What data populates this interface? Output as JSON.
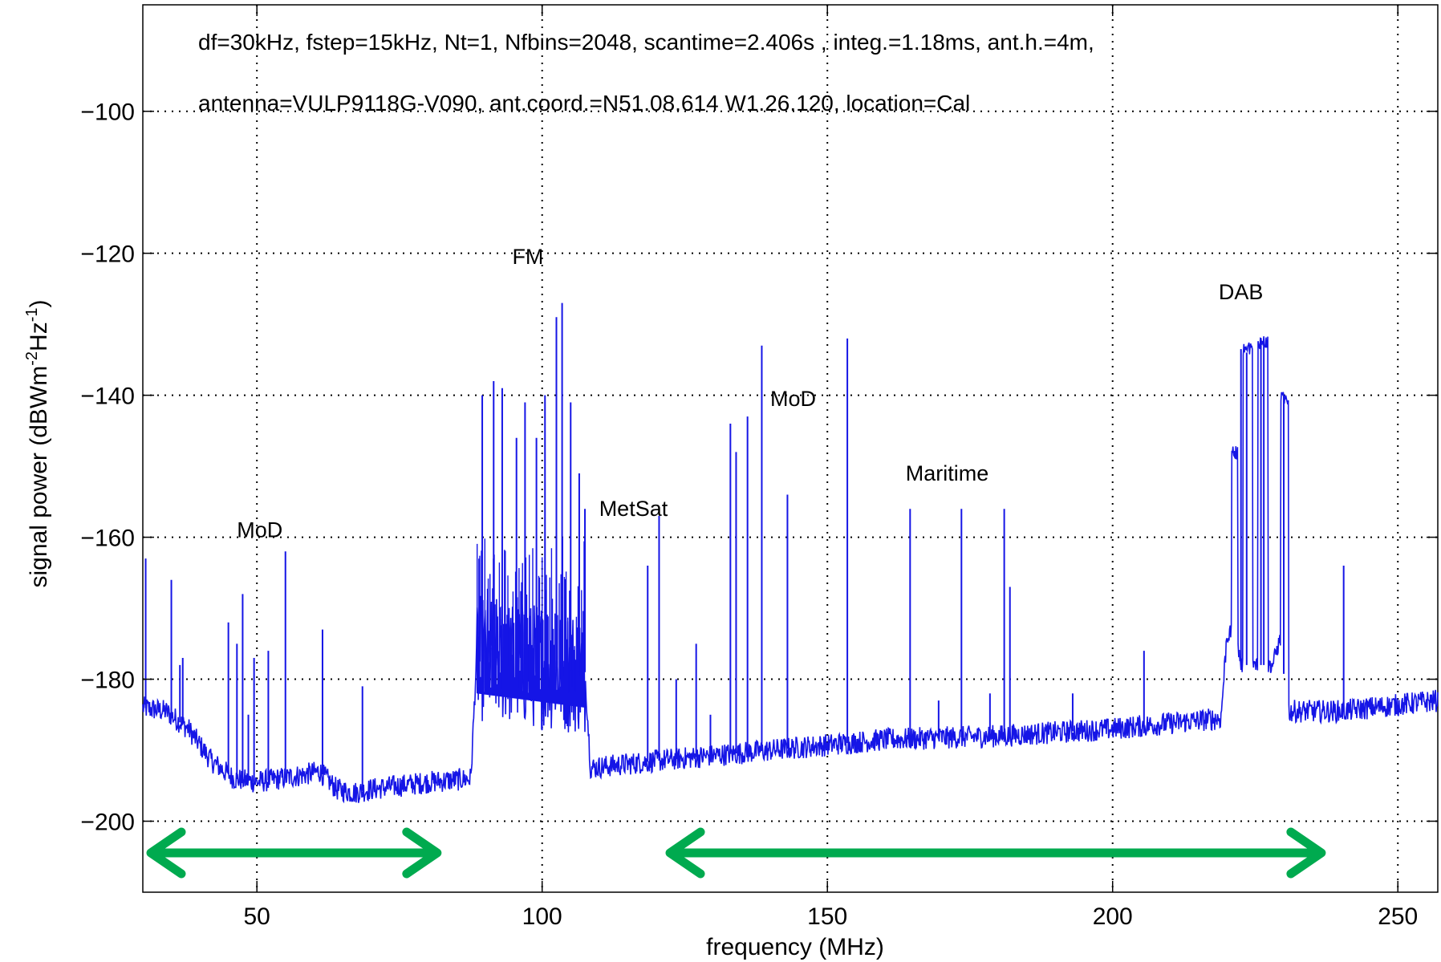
{
  "chart_data": {
    "type": "line",
    "title": "",
    "annotations": {
      "line1": "df=30kHz, fstep=15kHz, Nt=1, Nfbins=2048, scantime=2.406s , integ.=1.18ms, ant.h.=4m,",
      "line2": "antenna=VULP9118G-V090, ant.coord.=N51.08.614 W1.26.120, location=Cal"
    },
    "xlabel": "frequency (MHz)",
    "ylabel_main": "signal power (dBWm",
    "ylabel_exp1": "-2",
    "ylabel_mid": "Hz",
    "ylabel_exp2": "-1",
    "ylabel_end": ")",
    "xlim": [
      30,
      257
    ],
    "ylim": [
      -210,
      -85
    ],
    "x_ticks": [
      {
        "value": 50,
        "label": "50"
      },
      {
        "value": 100,
        "label": "100"
      },
      {
        "value": 150,
        "label": "150"
      },
      {
        "value": 200,
        "label": "200"
      },
      {
        "value": 250,
        "label": "250"
      }
    ],
    "y_ticks": [
      {
        "value": -100,
        "label": "−100"
      },
      {
        "value": -120,
        "label": "−120"
      },
      {
        "value": -140,
        "label": "−140"
      },
      {
        "value": -160,
        "label": "−160"
      },
      {
        "value": -180,
        "label": "−180"
      },
      {
        "value": -200,
        "label": "−200"
      }
    ],
    "grid": true,
    "line_color": "#1515e6",
    "arrow_color": "#00aa4f",
    "band_labels": [
      {
        "text": "MoD",
        "x": 50.5,
        "y": -160
      },
      {
        "text": "FM",
        "x": 97.5,
        "y": -121.5
      },
      {
        "text": "MetSat",
        "x": 116,
        "y": -157
      },
      {
        "text": "MoD",
        "x": 144,
        "y": -141.5
      },
      {
        "text": "Maritime",
        "x": 171,
        "y": -152
      },
      {
        "text": "DAB",
        "x": 222.5,
        "y": -126.5
      }
    ],
    "arrows": [
      {
        "x_start": 30,
        "x_end": 83
      },
      {
        "x_start": 121,
        "x_end": 238
      }
    ],
    "noise_floor": [
      [
        30,
        -184
      ],
      [
        34,
        -184.5
      ],
      [
        38,
        -187
      ],
      [
        42,
        -191.5
      ],
      [
        46,
        -194
      ],
      [
        50,
        -194.5
      ],
      [
        54,
        -194
      ],
      [
        58,
        -193.5
      ],
      [
        61,
        -193
      ],
      [
        64,
        -195.5
      ],
      [
        67,
        -196
      ],
      [
        70,
        -195.5
      ],
      [
        75,
        -195
      ],
      [
        80,
        -194.5
      ],
      [
        87.5,
        -194
      ],
      [
        88.5,
        -177
      ],
      [
        107.5,
        -179
      ],
      [
        108.5,
        -192.5
      ],
      [
        120,
        -191.5
      ],
      [
        140,
        -190
      ],
      [
        160,
        -188.5
      ],
      [
        180,
        -188
      ],
      [
        200,
        -187
      ],
      [
        219,
        -185.5
      ],
      [
        220,
        -174
      ],
      [
        221.5,
        -173
      ],
      [
        222.5,
        -178
      ],
      [
        228,
        -178
      ],
      [
        229.5,
        -174
      ],
      [
        230.5,
        -184.5
      ],
      [
        240,
        -184.5
      ],
      [
        257,
        -183
      ]
    ],
    "peaks": [
      [
        30.5,
        -163
      ],
      [
        35,
        -166
      ],
      [
        36.5,
        -178
      ],
      [
        37,
        -177
      ],
      [
        45,
        -172
      ],
      [
        46.5,
        -175
      ],
      [
        47.5,
        -168
      ],
      [
        48.5,
        -185
      ],
      [
        49.5,
        -177
      ],
      [
        52,
        -176
      ],
      [
        55,
        -162
      ],
      [
        61.5,
        -173
      ],
      [
        68.5,
        -181
      ],
      [
        89.5,
        -140
      ],
      [
        91.5,
        -138
      ],
      [
        93,
        -139
      ],
      [
        95.5,
        -146
      ],
      [
        97,
        -141
      ],
      [
        99,
        -146
      ],
      [
        100.5,
        -140
      ],
      [
        102.5,
        -129
      ],
      [
        103.5,
        -127
      ],
      [
        105,
        -141
      ],
      [
        106.5,
        -151
      ],
      [
        107.5,
        -156
      ],
      [
        118.5,
        -164
      ],
      [
        120.5,
        -157
      ],
      [
        123.5,
        -180
      ],
      [
        127,
        -175
      ],
      [
        129.5,
        -185
      ],
      [
        133,
        -144
      ],
      [
        134,
        -148
      ],
      [
        136,
        -143
      ],
      [
        138.5,
        -133
      ],
      [
        143,
        -154
      ],
      [
        153.5,
        -132
      ],
      [
        164.5,
        -156
      ],
      [
        169.5,
        -183
      ],
      [
        173.5,
        -156
      ],
      [
        178.5,
        -182
      ],
      [
        181,
        -156
      ],
      [
        182,
        -167
      ],
      [
        193,
        -182
      ],
      [
        205.5,
        -176
      ],
      [
        222.5,
        -133.5
      ],
      [
        223.5,
        -134
      ],
      [
        226,
        -132
      ],
      [
        226.5,
        -132
      ],
      [
        230,
        -140
      ],
      [
        240.5,
        -164
      ]
    ],
    "plateaus": [
      {
        "x0": 220.8,
        "x1": 221.9,
        "top": -148
      },
      {
        "x0": 222.8,
        "x1": 224.5,
        "top": -133.5
      },
      {
        "x0": 225.4,
        "x1": 227.2,
        "top": -132.5
      },
      {
        "x0": 229.4,
        "x1": 230.8,
        "top": -140.5
      }
    ]
  }
}
